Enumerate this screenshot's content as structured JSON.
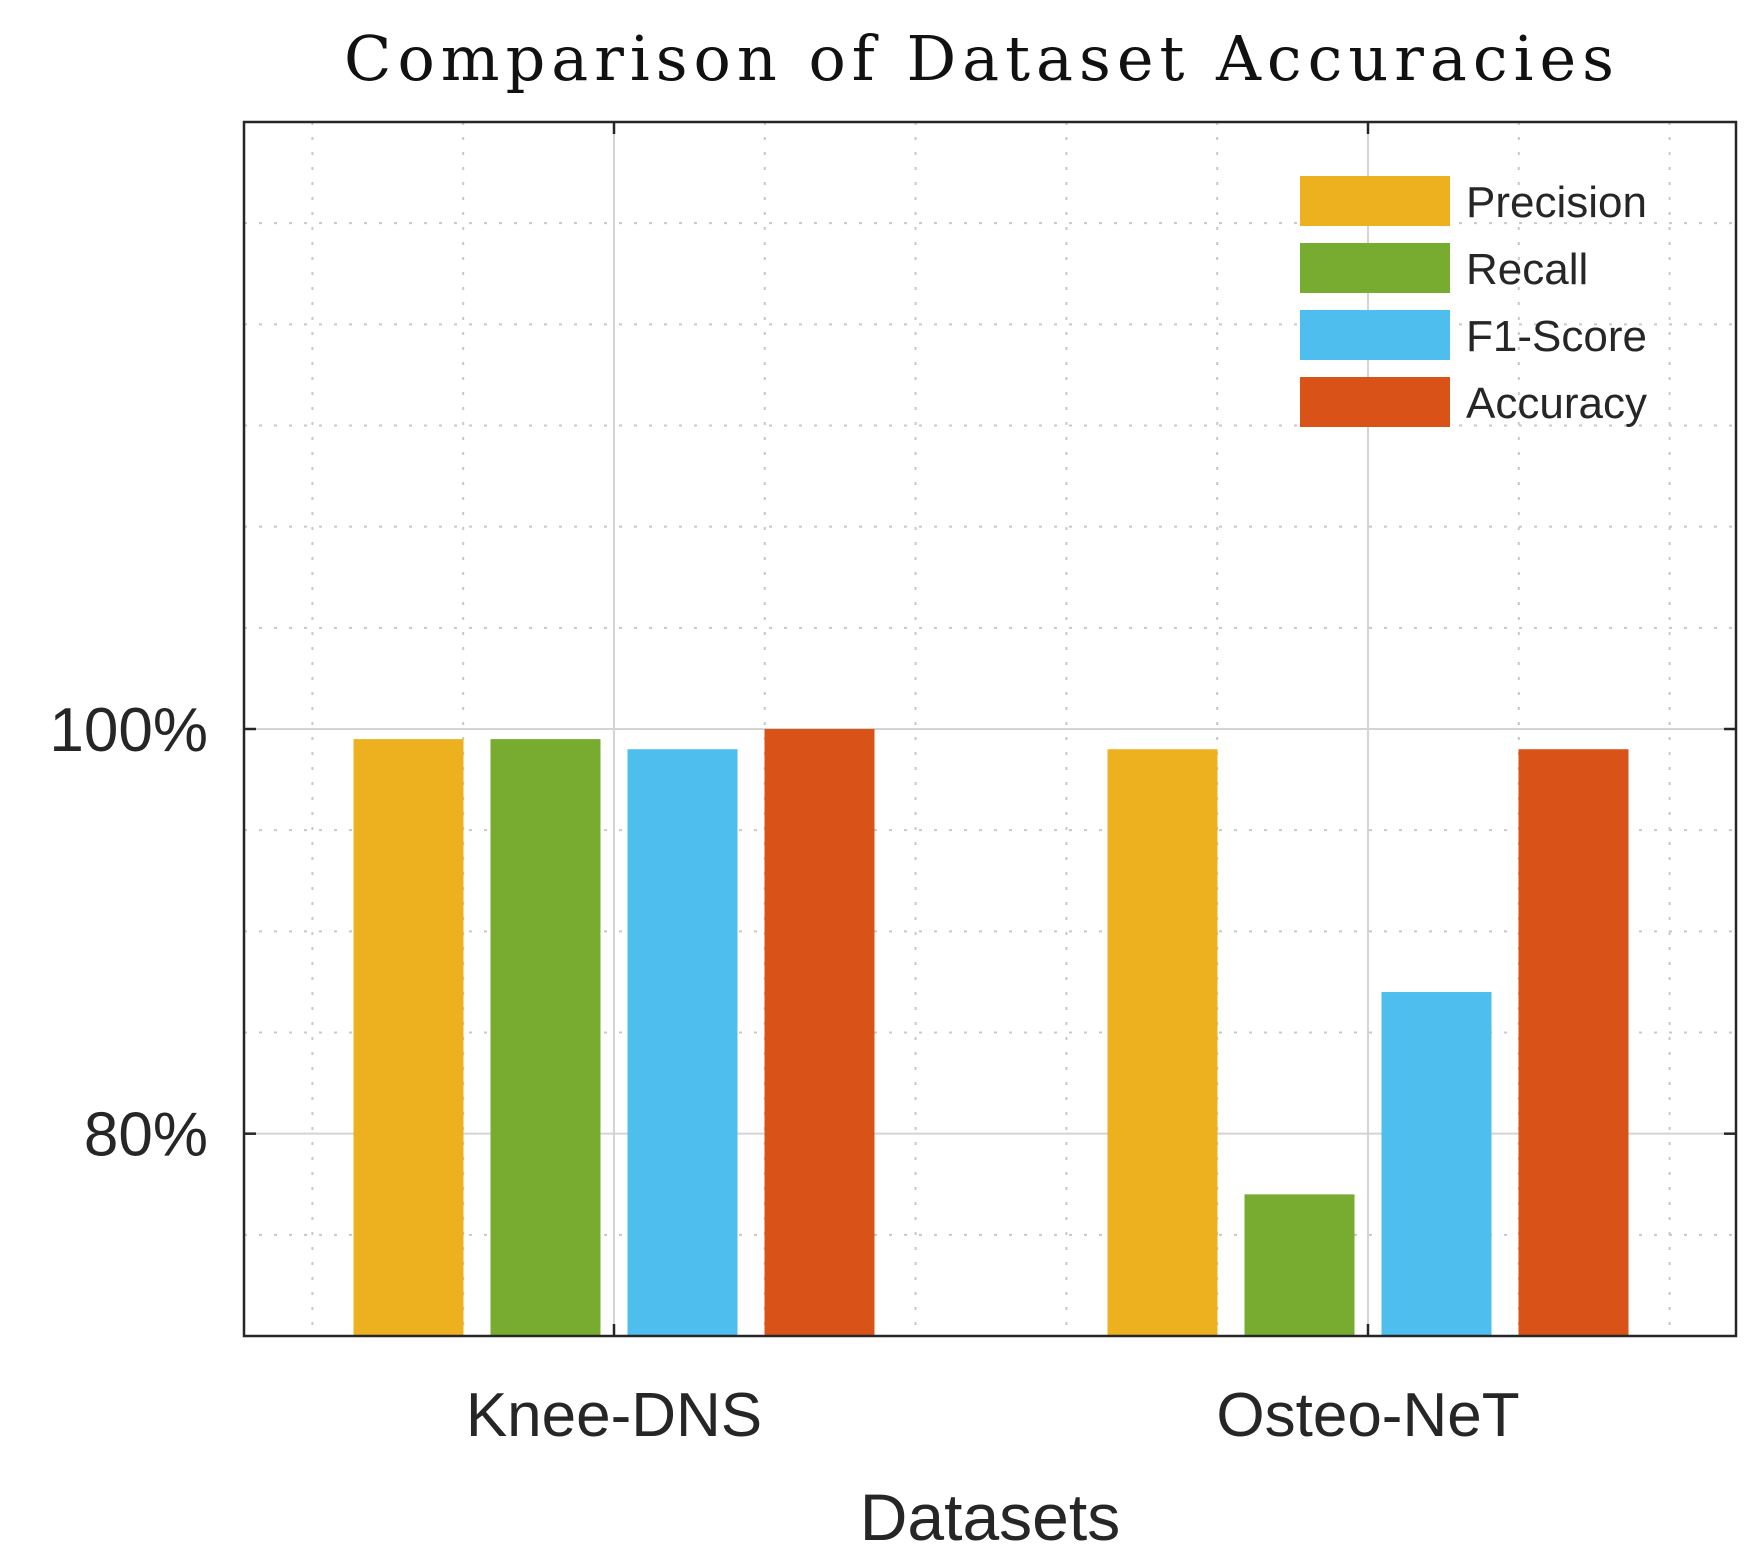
{
  "chart_data": {
    "type": "bar",
    "title": "Comparison of Dataset Accuracies",
    "xlabel": "Datasets",
    "ylabel": "",
    "categories": [
      "Knee-DNS",
      "Osteo-NeT"
    ],
    "series": [
      {
        "name": "Precision",
        "color": "#EDB120",
        "values": [
          99.5,
          99.0
        ]
      },
      {
        "name": "Recall",
        "color": "#77AC30",
        "values": [
          99.5,
          77.0
        ]
      },
      {
        "name": "F1-Score",
        "color": "#4DBEEE",
        "values": [
          99.0,
          87.0
        ]
      },
      {
        "name": "Accuracy",
        "color": "#D95319",
        "values": [
          100.0,
          99.0
        ]
      }
    ],
    "ylim": [
      70,
      130
    ],
    "yticks": [
      {
        "value": 80,
        "label": "80%"
      },
      {
        "value": 100,
        "label": "100%"
      }
    ],
    "grid": true,
    "legend_position": "top-right"
  }
}
